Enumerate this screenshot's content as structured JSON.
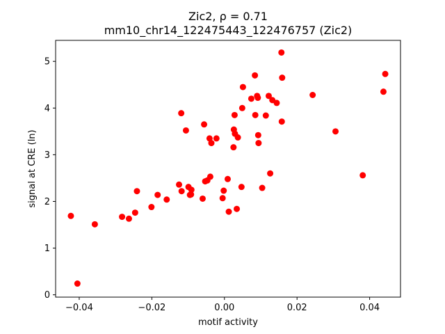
{
  "chart_data": {
    "type": "scatter",
    "title_line1": "Zic2, ρ = 0.71",
    "title_line2": "mm10_chr14_122475443_122476757 (Zic2)",
    "xlabel": "motif activity",
    "ylabel": "signal at CRE (ln)",
    "xlim": [
      -0.0465,
      0.0485
    ],
    "ylim": [
      -0.05,
      5.45
    ],
    "xticks": [
      -0.04,
      -0.02,
      0.0,
      0.02,
      0.04
    ],
    "xtick_labels": [
      "−0.04",
      "−0.02",
      "0.00",
      "0.02",
      "0.04"
    ],
    "yticks": [
      0,
      1,
      2,
      3,
      4,
      5
    ],
    "ytick_labels": [
      "0",
      "1",
      "2",
      "3",
      "4",
      "5"
    ],
    "grid": false,
    "marker_color": "#ff0000",
    "points": [
      {
        "x": -0.0423,
        "y": 1.69
      },
      {
        "x": -0.0405,
        "y": 0.24
      },
      {
        "x": -0.0357,
        "y": 1.51
      },
      {
        "x": -0.0282,
        "y": 1.67
      },
      {
        "x": -0.0263,
        "y": 1.63
      },
      {
        "x": -0.0246,
        "y": 1.76
      },
      {
        "x": -0.0241,
        "y": 2.22
      },
      {
        "x": -0.0201,
        "y": 1.88
      },
      {
        "x": -0.0184,
        "y": 2.14
      },
      {
        "x": -0.0159,
        "y": 2.04
      },
      {
        "x": -0.0125,
        "y": 2.36
      },
      {
        "x": -0.0119,
        "y": 3.89
      },
      {
        "x": -0.0118,
        "y": 2.22
      },
      {
        "x": -0.0106,
        "y": 3.52
      },
      {
        "x": -0.0099,
        "y": 2.31
      },
      {
        "x": -0.0095,
        "y": 2.14
      },
      {
        "x": -0.0092,
        "y": 2.15
      },
      {
        "x": -0.0091,
        "y": 2.25
      },
      {
        "x": -0.006,
        "y": 2.06
      },
      {
        "x": -0.0056,
        "y": 3.65
      },
      {
        "x": -0.0053,
        "y": 2.43
      },
      {
        "x": -0.0047,
        "y": 2.45
      },
      {
        "x": -0.0041,
        "y": 3.35
      },
      {
        "x": -0.0039,
        "y": 2.53
      },
      {
        "x": -0.0036,
        "y": 3.25
      },
      {
        "x": -0.0022,
        "y": 3.35
      },
      {
        "x": -0.0005,
        "y": 2.07
      },
      {
        "x": -0.0002,
        "y": 2.23
      },
      {
        "x": 0.0009,
        "y": 2.48
      },
      {
        "x": 0.0012,
        "y": 1.78
      },
      {
        "x": 0.0025,
        "y": 3.16
      },
      {
        "x": 0.0026,
        "y": 3.54
      },
      {
        "x": 0.0028,
        "y": 3.85
      },
      {
        "x": 0.0029,
        "y": 3.45
      },
      {
        "x": 0.0034,
        "y": 1.84
      },
      {
        "x": 0.0037,
        "y": 3.37
      },
      {
        "x": 0.0047,
        "y": 2.31
      },
      {
        "x": 0.0049,
        "y": 4.0
      },
      {
        "x": 0.0051,
        "y": 4.45
      },
      {
        "x": 0.0074,
        "y": 4.2
      },
      {
        "x": 0.0084,
        "y": 4.7
      },
      {
        "x": 0.0085,
        "y": 3.85
      },
      {
        "x": 0.009,
        "y": 4.26
      },
      {
        "x": 0.0092,
        "y": 4.22
      },
      {
        "x": 0.0093,
        "y": 3.42
      },
      {
        "x": 0.0094,
        "y": 3.25
      },
      {
        "x": 0.0104,
        "y": 2.29
      },
      {
        "x": 0.0114,
        "y": 3.84
      },
      {
        "x": 0.0122,
        "y": 4.26
      },
      {
        "x": 0.0126,
        "y": 2.6
      },
      {
        "x": 0.0132,
        "y": 4.17
      },
      {
        "x": 0.0144,
        "y": 4.11
      },
      {
        "x": 0.0157,
        "y": 5.19
      },
      {
        "x": 0.0158,
        "y": 3.71
      },
      {
        "x": 0.0159,
        "y": 4.65
      },
      {
        "x": 0.0243,
        "y": 4.28
      },
      {
        "x": 0.0306,
        "y": 3.5
      },
      {
        "x": 0.0381,
        "y": 2.56
      },
      {
        "x": 0.0438,
        "y": 4.35
      },
      {
        "x": 0.0443,
        "y": 4.73
      }
    ]
  }
}
